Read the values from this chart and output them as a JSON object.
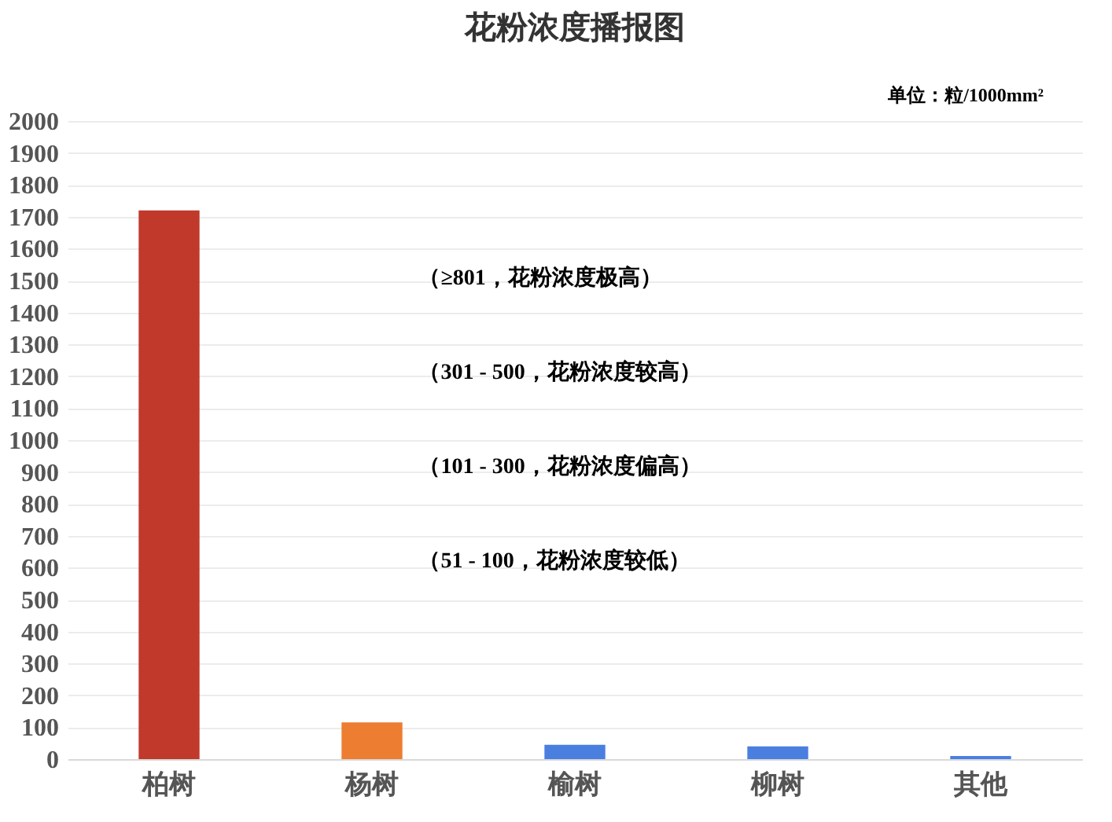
{
  "chart_data": {
    "type": "bar",
    "title": "花粉浓度播报图",
    "ylabel": "单位：粒/1000mm²",
    "categories": [
      "柏树",
      "杨树",
      "榆树",
      "柳树",
      "其他"
    ],
    "values": [
      1720,
      115,
      45,
      40,
      10
    ],
    "colors": [
      "#c0392b",
      "#ed7d31",
      "#4a7fe0",
      "#4a7fe0",
      "#4a7fe0"
    ],
    "ylim": [
      0,
      2000
    ],
    "yticks": [
      0,
      100,
      200,
      300,
      400,
      500,
      600,
      700,
      800,
      900,
      1000,
      1100,
      1200,
      1300,
      1400,
      1500,
      1600,
      1700,
      1800,
      1900,
      2000
    ],
    "grid": "y",
    "annotations": [
      "（≥801，花粉浓度极高）",
      "（301 - 500，花粉浓度较高）",
      "（101 - 300，花粉浓度偏高）",
      "（51 - 100，花粉浓度较低）"
    ]
  }
}
